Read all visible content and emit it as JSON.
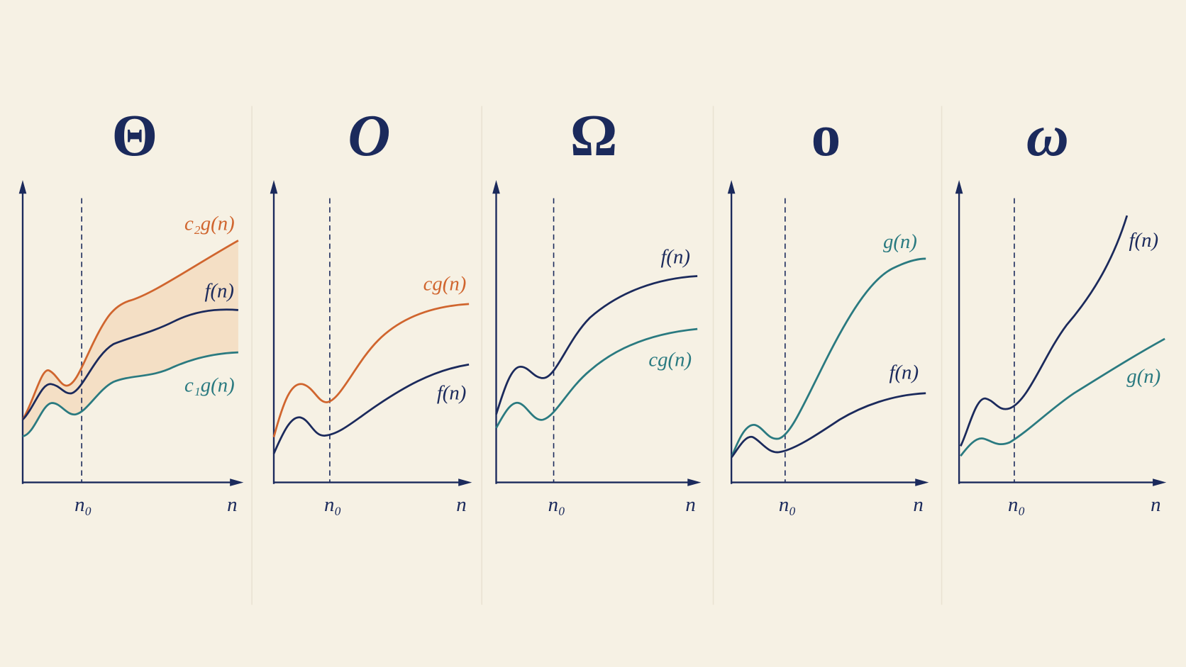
{
  "panels": [
    {
      "symbol": "Θ",
      "threshold": "n₀",
      "axis": "n",
      "labels": [
        "c₂g(n)",
        "f(n)",
        "c₁g(n)"
      ]
    },
    {
      "symbol": "O",
      "threshold": "n₀",
      "axis": "n",
      "labels": [
        "cg(n)",
        "f(n)"
      ]
    },
    {
      "symbol": "Ω",
      "threshold": "n₀",
      "axis": "n",
      "labels": [
        "f(n)",
        "cg(n)"
      ]
    },
    {
      "symbol": "o",
      "threshold": "n₀",
      "axis": "n",
      "labels": [
        "g(n)",
        "f(n)"
      ]
    },
    {
      "symbol": "ω",
      "threshold": "n₀",
      "axis": "n",
      "labels": [
        "f(n)",
        "g(n)"
      ]
    }
  ]
}
